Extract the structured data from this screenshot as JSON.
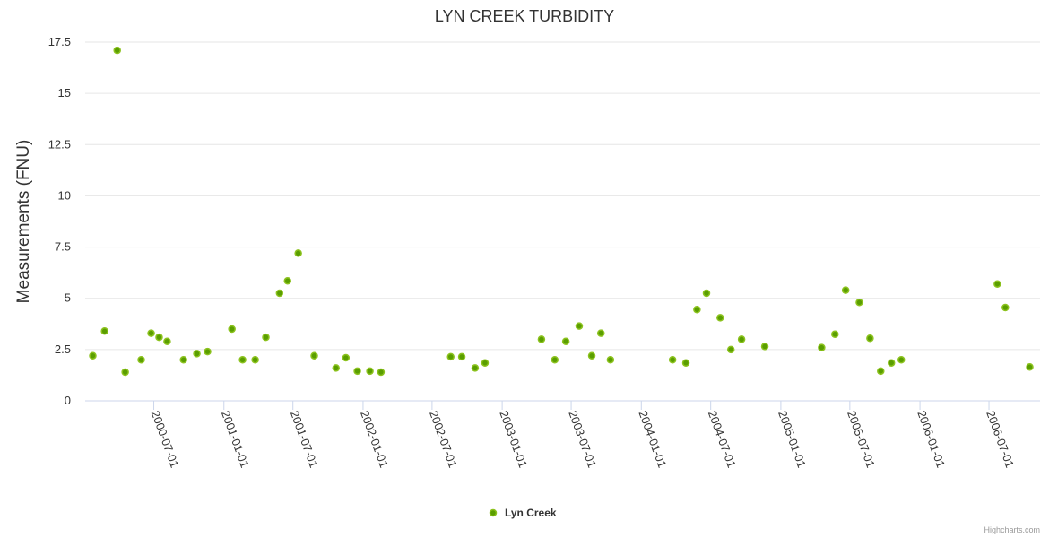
{
  "chart_data": {
    "type": "scatter",
    "title": "LYN CREEK TURBIDITY",
    "xlabel": "",
    "ylabel": "Measurements (FNU)",
    "ylim": [
      0,
      17.5
    ],
    "yticks": [
      "0",
      "2.5",
      "5",
      "7.5",
      "10",
      "12.5",
      "15",
      "17.5"
    ],
    "xlim": [
      "2000-01-03",
      "2006-11-12"
    ],
    "xticks": [
      "2000-07-01",
      "2001-01-01",
      "2001-07-01",
      "2002-01-01",
      "2002-07-01",
      "2003-01-01",
      "2003-07-01",
      "2004-01-01",
      "2004-07-01",
      "2005-01-01",
      "2005-07-01",
      "2006-01-01",
      "2006-07-01"
    ],
    "grid": true,
    "legend_position": "bottom-center",
    "series": [
      {
        "name": "Lyn Creek",
        "color": "#5a9e00",
        "border_color": "#8cc21e",
        "points": [
          [
            "2000-01-23",
            2.2
          ],
          [
            "2000-02-23",
            3.4
          ],
          [
            "2000-03-27",
            17.1
          ],
          [
            "2000-04-17",
            1.4
          ],
          [
            "2000-05-29",
            2.0
          ],
          [
            "2000-06-24",
            3.3
          ],
          [
            "2000-07-15",
            3.1
          ],
          [
            "2000-08-05",
            2.9
          ],
          [
            "2000-09-17",
            2.0
          ],
          [
            "2000-10-22",
            2.3
          ],
          [
            "2000-11-19",
            2.4
          ],
          [
            "2001-01-22",
            3.5
          ],
          [
            "2001-02-19",
            2.0
          ],
          [
            "2001-03-24",
            2.0
          ],
          [
            "2001-04-21",
            3.1
          ],
          [
            "2001-05-27",
            5.25
          ],
          [
            "2001-06-17",
            5.85
          ],
          [
            "2001-07-15",
            7.2
          ],
          [
            "2001-08-26",
            2.2
          ],
          [
            "2001-10-22",
            1.6
          ],
          [
            "2001-11-17",
            2.1
          ],
          [
            "2001-12-17",
            1.45
          ],
          [
            "2002-01-19",
            1.45
          ],
          [
            "2002-02-17",
            1.4
          ],
          [
            "2002-08-19",
            2.15
          ],
          [
            "2002-09-17",
            2.15
          ],
          [
            "2002-10-22",
            1.6
          ],
          [
            "2002-11-17",
            1.85
          ],
          [
            "2003-04-14",
            3.0
          ],
          [
            "2003-05-19",
            2.0
          ],
          [
            "2003-06-17",
            2.9
          ],
          [
            "2003-07-22",
            3.65
          ],
          [
            "2003-08-24",
            2.2
          ],
          [
            "2003-09-17",
            3.3
          ],
          [
            "2003-10-12",
            2.0
          ],
          [
            "2004-03-23",
            2.0
          ],
          [
            "2004-04-27",
            1.85
          ],
          [
            "2004-05-26",
            4.45
          ],
          [
            "2004-06-20",
            5.25
          ],
          [
            "2004-07-26",
            4.05
          ],
          [
            "2004-08-23",
            2.5
          ],
          [
            "2004-09-20",
            3.0
          ],
          [
            "2004-11-20",
            2.65
          ],
          [
            "2005-04-18",
            2.6
          ],
          [
            "2005-05-23",
            3.25
          ],
          [
            "2005-06-20",
            5.4
          ],
          [
            "2005-07-26",
            4.8
          ],
          [
            "2005-08-23",
            3.05
          ],
          [
            "2005-09-20",
            1.45
          ],
          [
            "2005-10-18",
            1.85
          ],
          [
            "2005-11-13",
            2.0
          ],
          [
            "2006-07-23",
            5.7
          ],
          [
            "2006-08-13",
            4.55
          ],
          [
            "2006-10-16",
            1.65
          ]
        ]
      }
    ]
  },
  "credits": "Highcharts.com"
}
